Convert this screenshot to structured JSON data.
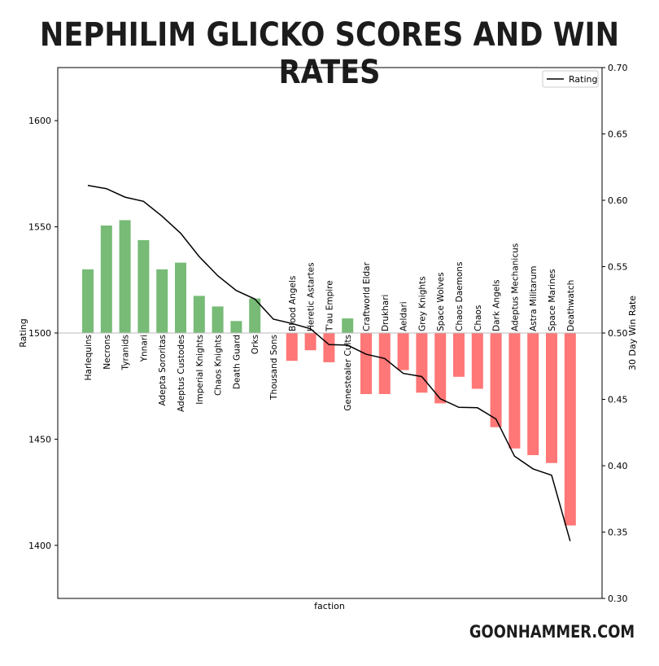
{
  "page": {
    "title": "NEPHILIM GLICKO SCORES AND WIN RATES",
    "brand": "GOONHAMMER.COM"
  },
  "colors": {
    "above": "#77bb77",
    "below": "#ff7777",
    "line": "#000000",
    "baseline": "#bbbbbb"
  },
  "chart_data": {
    "type": "bar",
    "xlabel": "faction",
    "ylabel": "Rating",
    "y2label": "30 Day Win Rate",
    "ylim": [
      1375,
      1625
    ],
    "y2lim": [
      0.3,
      0.7
    ],
    "yticks": [
      1400,
      1450,
      1500,
      1550,
      1600
    ],
    "y2ticks": [
      "0.30",
      "0.35",
      "0.40",
      "0.45",
      "0.50",
      "0.55",
      "0.60",
      "0.65",
      "0.70"
    ],
    "baseline": 1500,
    "legend": {
      "label": "Rating",
      "position": "top-right"
    },
    "categories": [
      "Harlequins",
      "Necrons",
      "Tyranids",
      "Ynnari",
      "Adepta Sororitas",
      "Adeptus Custodes",
      "Imperial Knights",
      "Chaos Knights",
      "Death Guard",
      "Orks",
      "Thousand Sons",
      "Blood Angels",
      "Heretic Astartes",
      "T'au Empire",
      "Genestealer Cults",
      "Craftworld Eldar",
      "Drukhari",
      "Aeldari",
      "Grey Knights",
      "Space Wolves",
      "Chaos Daemons",
      "Chaos",
      "Dark Angels",
      "Adeptus Mechanicus",
      "Astra Militarum",
      "Space Marines",
      "Deathwatch"
    ],
    "series": [
      {
        "name": "Rating",
        "type": "line",
        "values": [
          1569.5,
          1568,
          1564,
          1562,
          1555,
          1547,
          1536,
          1527,
          1520,
          1516,
          1506.5,
          1504.5,
          1502,
          1494.5,
          1494.3,
          1490,
          1488,
          1481,
          1479.5,
          1469,
          1465,
          1464.8,
          1459.5,
          1442,
          1436,
          1433,
          1402
        ]
      },
      {
        "type": "bar",
        "values": [
          0.548,
          0.581,
          0.585,
          0.57,
          0.548,
          0.553,
          0.528,
          0.52,
          0.509,
          0.526,
          0.5,
          0.479,
          0.487,
          0.478,
          0.511,
          0.454,
          0.454,
          0.472,
          0.455,
          0.447,
          0.467,
          0.458,
          0.429,
          0.413,
          0.408,
          0.402,
          0.355
        ]
      }
    ]
  }
}
